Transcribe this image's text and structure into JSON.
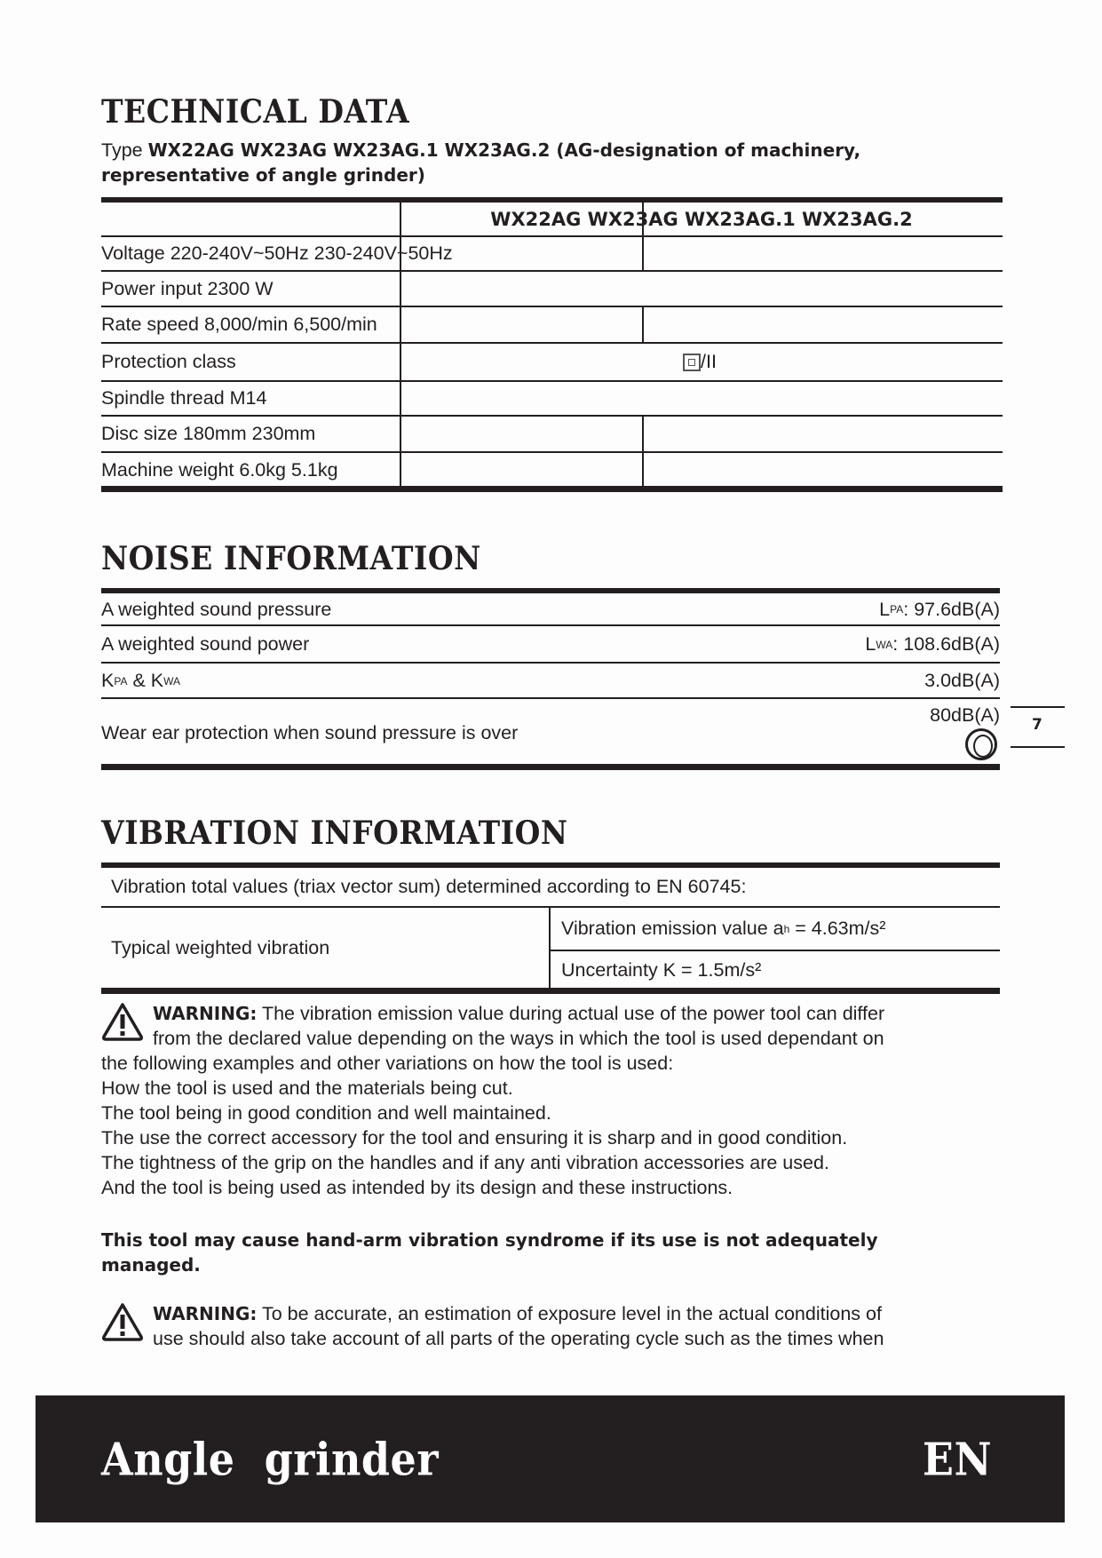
{
  "technical": {
    "title": "TECHNICAL DATA",
    "type_prefix": "Type",
    "type_line1": "WX22AG WX23AG WX23AG.1 WX23AG.2 (AG-designation of machinery,",
    "type_line2": "representative of angle grinder)",
    "table_header": "WX22AG WX23AG WX23AG.1 WX23AG.2",
    "rows": [
      {
        "label": "Voltage 220-240V~50Hz 230-240V~50Hz"
      },
      {
        "label": "Power input 2300 W"
      },
      {
        "label": "Rate speed 8,000/min 6,500/min"
      },
      {
        "label": "Protection class",
        "value": "/II",
        "icon": "double-insulation-icon"
      },
      {
        "label": "Spindle thread M14"
      },
      {
        "label": "Disc size 180mm 230mm"
      },
      {
        "label": "Machine weight 6.0kg 5.1kg"
      }
    ]
  },
  "noise": {
    "title": "NOISE INFORMATION",
    "rows": [
      {
        "label": "A weighted sound pressure",
        "symbol": "L",
        "symbol_sub": "PA",
        "value": "97.6dB(A)"
      },
      {
        "label": "A weighted sound power",
        "symbol": "L",
        "symbol_sub": "WA",
        "value": "108.6dB(A)"
      },
      {
        "label_k1": "K",
        "label_k1_sub": "PA",
        "label_amp": " & ",
        "label_k2": "K",
        "label_k2_sub": "WA",
        "value": "3.0dB(A)"
      },
      {
        "label": "Wear ear protection when sound pressure is over",
        "value": "80dB(A)",
        "icon": "ear-protection-icon"
      }
    ]
  },
  "vibration": {
    "title": "VIBRATION INFORMATION",
    "intro": "Vibration total values (triax vector sum) determined according to EN 60745:",
    "left_label": "Typical weighted vibration",
    "emission_pre": "Vibration emission value a",
    "emission_sub": "h",
    "emission_post": " = 4.63m/s²",
    "uncertainty": "Uncertainty K = 1.5m/s²"
  },
  "warning1": {
    "label": "WARNING:",
    "line1": " The vibration emission value during actual use of the power tool can differ",
    "line2": "from the declared value depending on the ways in which the tool is used dependant on",
    "lines": [
      "the following examples and other variations on how the tool is used:",
      "How the tool is used and the materials being cut.",
      "The tool being in good condition and well maintained.",
      "The use the correct accessory for the tool and ensuring it is sharp and in good condition.",
      "The tightness of the grip on the handles and if any anti vibration accessories are used.",
      "And the tool is being used as intended by its design and these instructions."
    ]
  },
  "havs_line1": "This tool may cause hand-arm vibration syndrome if its use is not adequately",
  "havs_line2": "managed.",
  "warning2": {
    "label": "WARNING:",
    "line1": " To be accurate, an estimation of exposure level in the actual conditions of",
    "line2": "use should also take account of all parts of the operating cycle such as the times when"
  },
  "page_number": "7",
  "footer": {
    "title": "Angle  grinder",
    "lang": "EN",
    "bg": "#231f20"
  }
}
